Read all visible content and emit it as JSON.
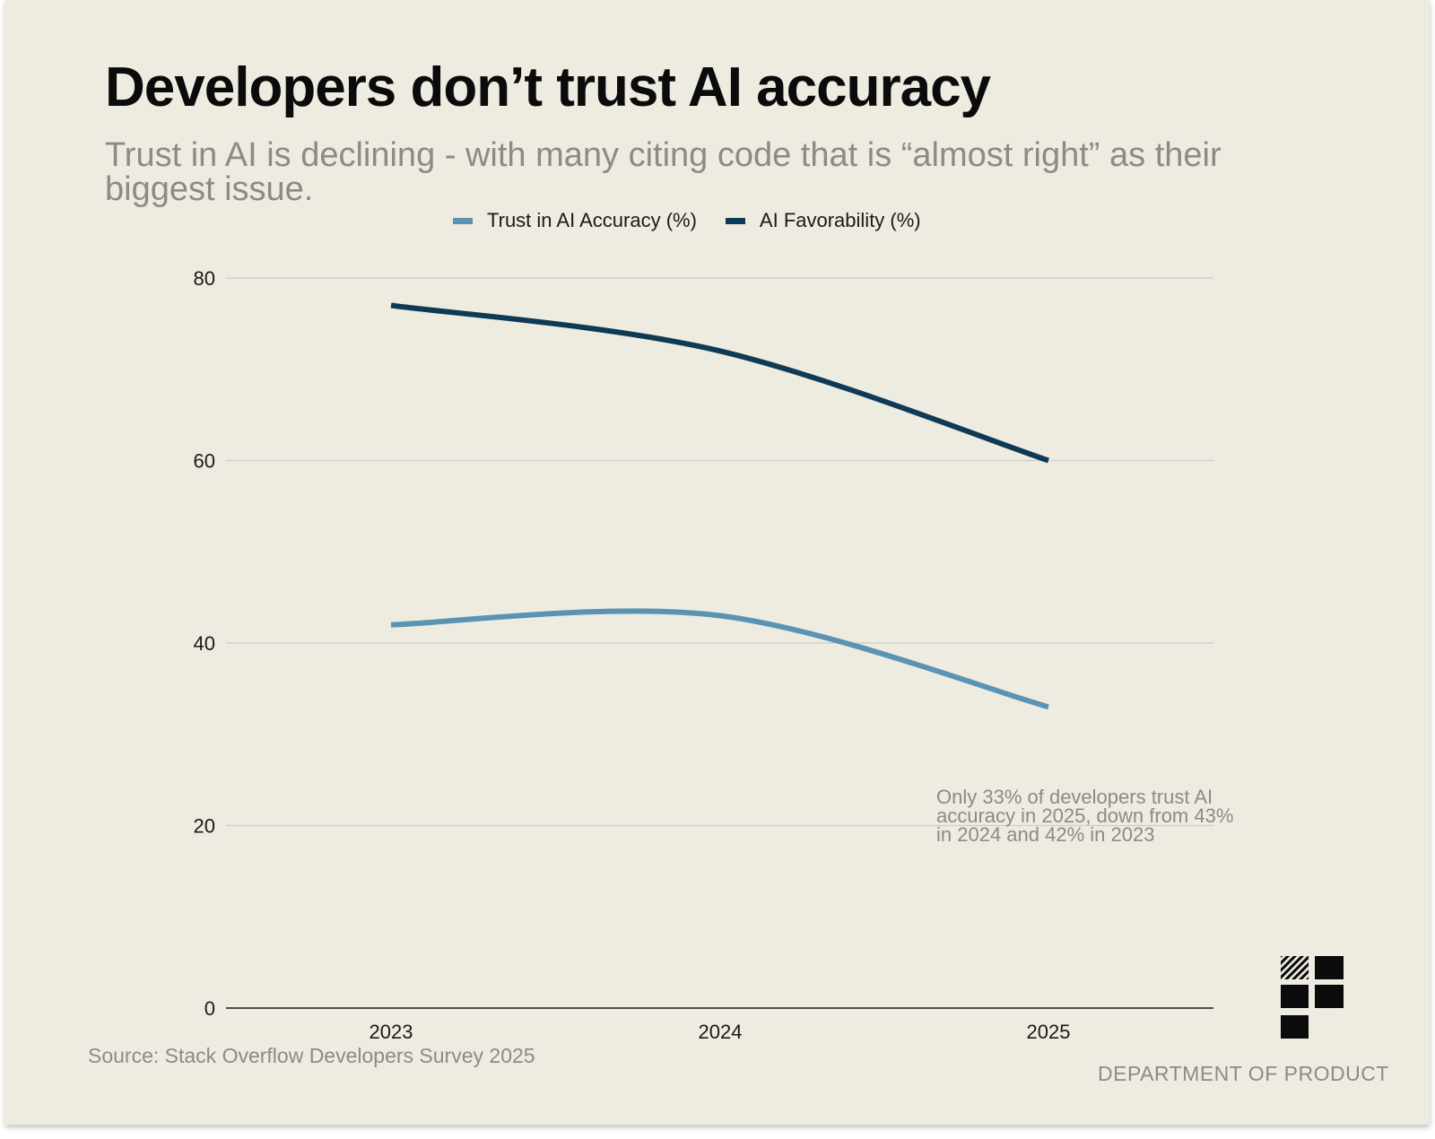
{
  "title": "Developers don’t trust AI accuracy",
  "subtitle": "Trust in AI is declining - with many citing code that is “almost right” as their biggest issue.",
  "source": "Source: Stack Overflow Developers Survey 2025",
  "brand": "DEPARTMENT OF PRODUCT",
  "colors": {
    "background": "#eeebe1",
    "trust": "#5b93b4",
    "favorability": "#0e3a55",
    "grid": "#cfcdc6",
    "axis": "#1a1a1a",
    "annotation": "#8b8b88"
  },
  "chart_data": {
    "type": "line",
    "title": "Developers don’t trust AI accuracy",
    "xlabel": "",
    "ylabel": "",
    "categories": [
      "2023",
      "2024",
      "2025"
    ],
    "series": [
      {
        "name": "Trust in AI Accuracy (%)",
        "color": "#5b93b4",
        "values": [
          42,
          43,
          33
        ]
      },
      {
        "name": "AI Favorability (%)",
        "color": "#0e3a55",
        "values": [
          77,
          72,
          60
        ]
      }
    ],
    "ylim": [
      0,
      80
    ],
    "yticks": [
      0,
      20,
      40,
      60,
      80
    ],
    "grid": true,
    "legend": "top-center",
    "annotation": "Only 33% of developers trust AI accuracy in 2025, down from 43% in 2024 and 42% in 2023"
  }
}
